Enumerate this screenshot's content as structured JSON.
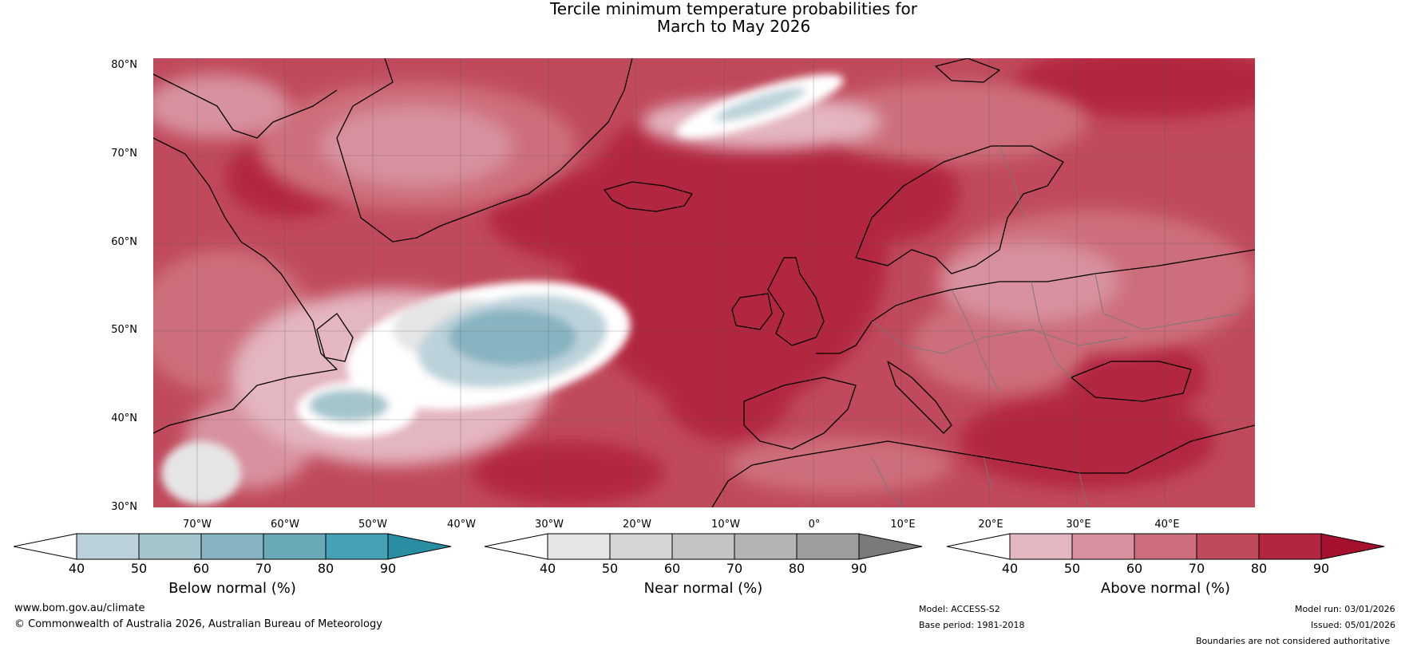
{
  "title_line1": "Tercile minimum temperature probabilities for",
  "title_line2": "March to May 2026",
  "map": {
    "lat_labels": [
      "80°N",
      "70°N",
      "60°N",
      "50°N",
      "40°N",
      "30°N"
    ],
    "lon_labels": [
      "70°W",
      "60°W",
      "50°W",
      "40°W",
      "30°W",
      "20°W",
      "10°W",
      "0°",
      "10°E",
      "20°E",
      "30°E",
      "40°E"
    ],
    "colors": {
      "above_40": "#e4b6bf",
      "above_50": "#d8919e",
      "above_60": "#cd6e7c",
      "above_70": "#c04a5c",
      "above_80": "#b3263f",
      "above_90": "#a4102e",
      "below_40": "#bcd2da",
      "below_50": "#a5c5cd",
      "below_60": "#88b3c1",
      "below_70": "#69a9b8",
      "below_80": "#45a1b3",
      "below_90": "#2a8ea2",
      "near_40": "#e5e5e5",
      "near_50": "#d6d6d6",
      "near_60": "#c4c4c4",
      "near_70": "#b4b4b4",
      "near_80": "#9e9e9e",
      "near_90": "#7a7a7a"
    }
  },
  "legend": {
    "below": {
      "title": "Below normal (%)",
      "ticks": [
        "40",
        "50",
        "60",
        "70",
        "80",
        "90"
      ]
    },
    "near": {
      "title": "Near normal (%)",
      "ticks": [
        "40",
        "50",
        "60",
        "70",
        "80",
        "90"
      ]
    },
    "above": {
      "title": "Above normal (%)",
      "ticks": [
        "40",
        "50",
        "60",
        "70",
        "80",
        "90"
      ]
    }
  },
  "footer": {
    "website": "www.bom.gov.au/climate",
    "copyright": "© Commonwealth of Australia 2026, Australian Bureau of Meteorology",
    "model": "Model: ACCESS-S2",
    "base_period": "Base period: 1981-2018",
    "model_run": "Model run: 03/01/2026",
    "issued": "Issued: 05/01/2026",
    "disclaimer": "Boundaries are not considered authoritative"
  }
}
